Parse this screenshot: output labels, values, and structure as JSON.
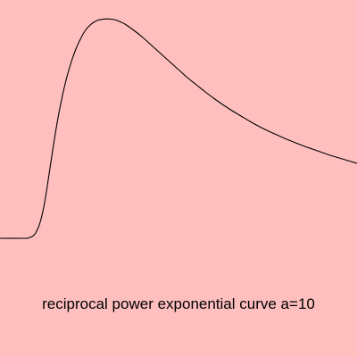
{
  "caption": "reciprocal power exponential curve a=10",
  "colors": {
    "background": "#ffbfbf",
    "curve": "#000000",
    "text": "#000000"
  },
  "chart_data": {
    "type": "line",
    "title": "",
    "xlabel": "",
    "ylabel": "",
    "grid": false,
    "axes_visible": false,
    "xlim": [
      0,
      400
    ],
    "ylim": [
      0,
      250
    ],
    "series": [
      {
        "x": [
          0,
          28,
          32,
          36,
          40,
          45,
          50,
          55,
          60,
          65,
          70,
          75,
          80,
          85,
          90,
          95,
          100,
          105,
          110,
          115,
          120,
          125,
          130,
          135,
          140,
          150,
          160,
          170,
          180,
          190,
          200,
          210,
          220,
          230,
          240,
          250,
          260,
          270,
          280,
          290,
          300,
          310,
          320,
          330,
          340,
          350,
          360,
          370,
          380,
          390,
          400
        ],
        "y": [
          0,
          0,
          0.5,
          2,
          6,
          18,
          40,
          72,
          105,
          135,
          160,
          181,
          198,
          212,
          223,
          232,
          238,
          242,
          244.5,
          245.5,
          245.8,
          245.5,
          244.5,
          242.5,
          240,
          233,
          225,
          216,
          207,
          198,
          189,
          180,
          172,
          164,
          156.5,
          149.5,
          143,
          137,
          131,
          125.5,
          120.5,
          116,
          111.5,
          107.5,
          103.5,
          100,
          96.5,
          93,
          90,
          87,
          84
        ]
      }
    ]
  }
}
